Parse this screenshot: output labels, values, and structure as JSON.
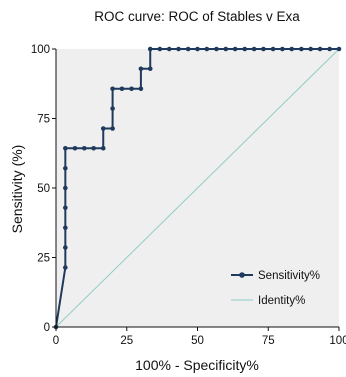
{
  "chart_data": {
    "type": "line",
    "title": "ROC curve: ROC of Stables v Exa",
    "xlabel": "100% - Specificity%",
    "ylabel": "Sensitivity (%)",
    "xlim": [
      0,
      100
    ],
    "ylim": [
      0,
      100
    ],
    "x_ticks": [
      "0",
      "25",
      "50",
      "75",
      "100"
    ],
    "y_ticks": [
      "0",
      "25",
      "50",
      "75",
      "100"
    ],
    "grid": false,
    "plot_background": "#efefef",
    "legend_position": "bottom-right",
    "series": [
      {
        "name": "Sensitivity%",
        "color": "#1f3a5c",
        "marker": "circle",
        "points": [
          [
            0,
            0
          ],
          [
            3.3,
            21.4
          ],
          [
            3.3,
            28.6
          ],
          [
            3.3,
            35.7
          ],
          [
            3.3,
            42.9
          ],
          [
            3.3,
            50
          ],
          [
            3.3,
            57.1
          ],
          [
            3.3,
            64.3
          ],
          [
            6.7,
            64.3
          ],
          [
            10,
            64.3
          ],
          [
            13.3,
            64.3
          ],
          [
            16.7,
            64.3
          ],
          [
            16.7,
            71.4
          ],
          [
            20,
            71.4
          ],
          [
            20,
            78.6
          ],
          [
            20,
            85.7
          ],
          [
            23.3,
            85.7
          ],
          [
            26.7,
            85.7
          ],
          [
            30,
            85.7
          ],
          [
            30,
            92.9
          ],
          [
            33.3,
            92.9
          ],
          [
            33.3,
            100
          ],
          [
            36.7,
            100
          ],
          [
            40,
            100
          ],
          [
            43.3,
            100
          ],
          [
            46.7,
            100
          ],
          [
            50,
            100
          ],
          [
            53.3,
            100
          ],
          [
            56.7,
            100
          ],
          [
            60,
            100
          ],
          [
            63.3,
            100
          ],
          [
            66.7,
            100
          ],
          [
            70,
            100
          ],
          [
            73.3,
            100
          ],
          [
            76.7,
            100
          ],
          [
            80,
            100
          ],
          [
            83.3,
            100
          ],
          [
            86.7,
            100
          ],
          [
            90,
            100
          ],
          [
            93.3,
            100
          ],
          [
            96.7,
            100
          ],
          [
            100,
            100
          ]
        ]
      },
      {
        "name": "Identity%",
        "color": "#8fcdc4",
        "marker": "none",
        "points": [
          [
            0,
            0
          ],
          [
            100,
            100
          ]
        ]
      }
    ]
  }
}
